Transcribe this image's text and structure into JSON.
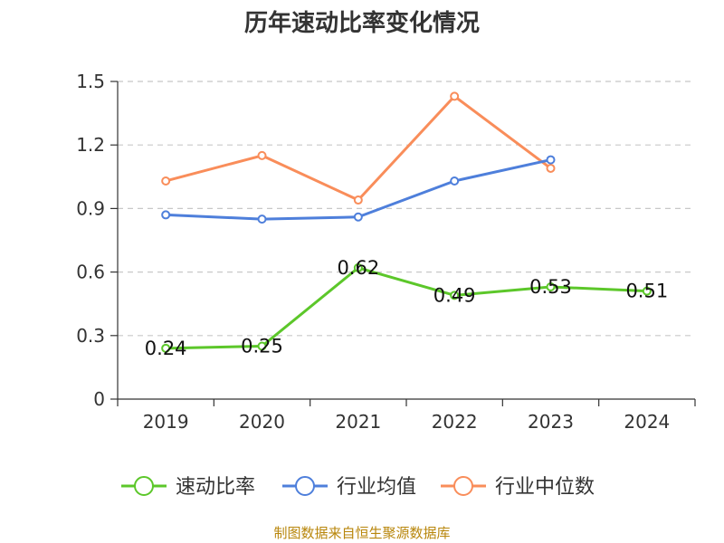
{
  "chart_data": {
    "type": "line",
    "title": "历年速动比率变化情况",
    "categories": [
      "2019",
      "2020",
      "2021",
      "2022",
      "2023",
      "2024"
    ],
    "ylim": [
      0,
      1.5
    ],
    "yticks": [
      "0",
      "0.3",
      "0.6",
      "0.9",
      "1.2",
      "1.5"
    ],
    "grid": true,
    "legend_position": "bottom",
    "series": [
      {
        "name": "速动比率",
        "color": "#5cc72a",
        "values": [
          0.24,
          0.25,
          0.62,
          0.49,
          0.53,
          0.51
        ],
        "labels": [
          "0.24",
          "0.25",
          "0.62",
          "0.49",
          "0.53",
          "0.51"
        ]
      },
      {
        "name": "行业均值",
        "color": "#4e7fdb",
        "values": [
          0.87,
          0.85,
          0.86,
          1.03,
          1.13,
          null
        ]
      },
      {
        "name": "行业中位数",
        "color": "#f98d5a",
        "values": [
          1.03,
          1.15,
          0.94,
          1.43,
          1.09,
          null
        ]
      }
    ]
  },
  "footer": "制图数据来自恒生聚源数据库"
}
